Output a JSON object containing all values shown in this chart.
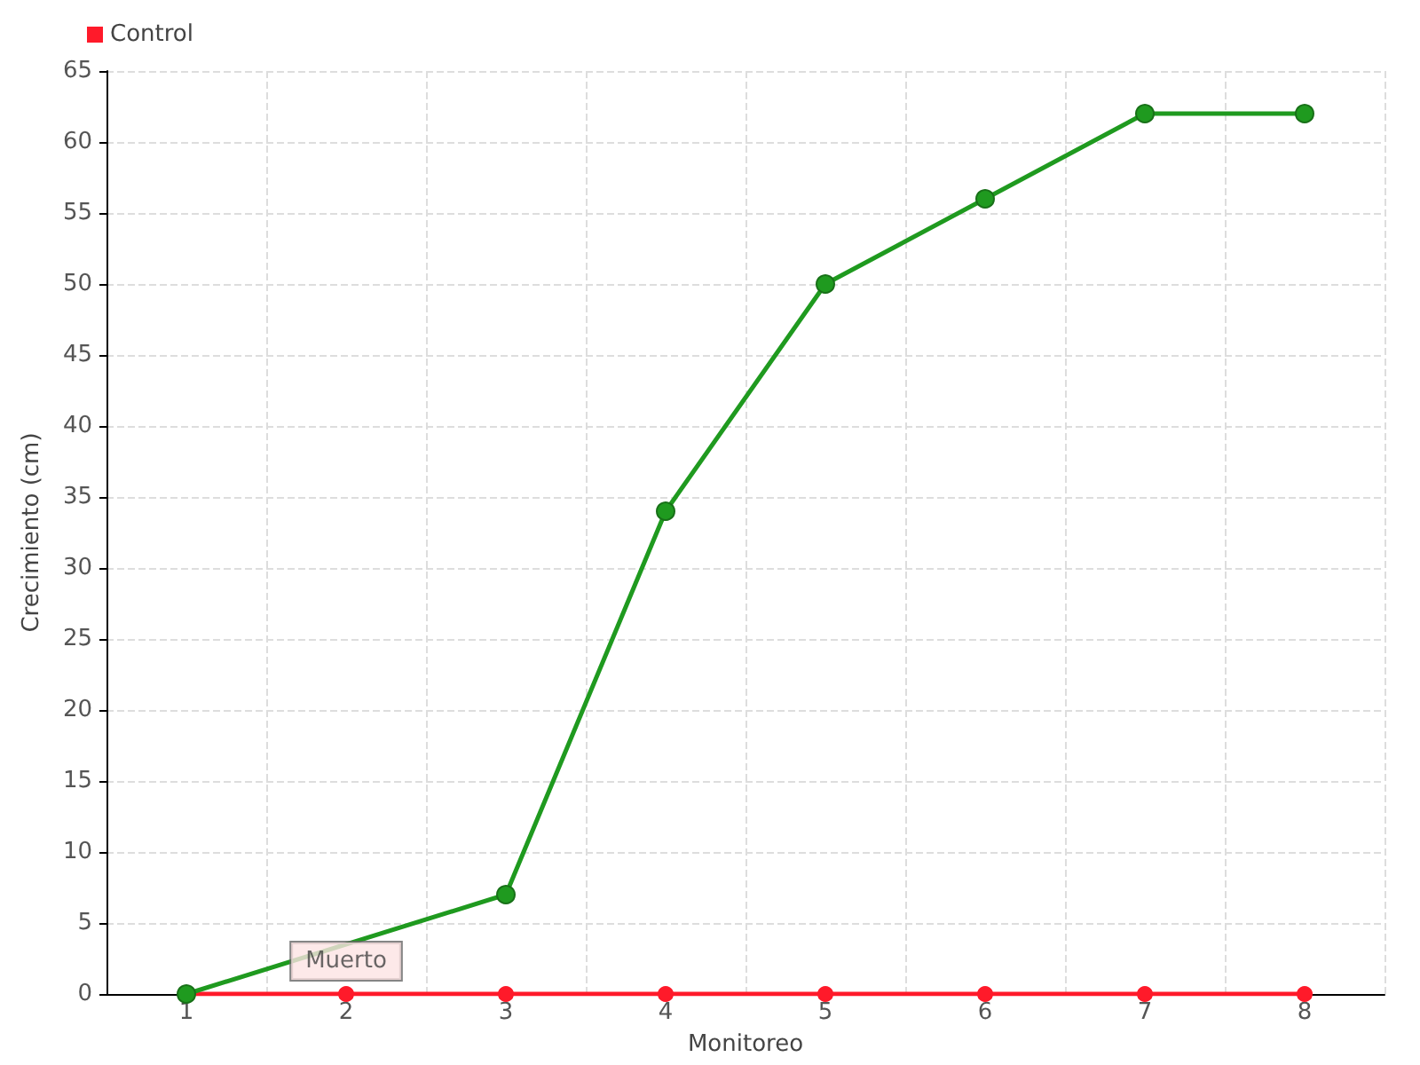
{
  "chart_data": {
    "type": "line",
    "xlabel": "Monitoreo",
    "ylabel": "Crecimiento (cm)",
    "categories": [
      "1",
      "2",
      "3",
      "4",
      "5",
      "6",
      "7",
      "8"
    ],
    "series": [
      {
        "color": "#1f9a1f",
        "values": [
          0,
          null,
          7,
          34,
          50,
          56,
          62,
          62
        ]
      },
      {
        "name": "Control",
        "color": "#ff1a2a",
        "values": [
          0,
          0,
          0,
          0,
          0,
          0,
          0,
          0
        ]
      }
    ],
    "ylim": [
      0,
      65
    ],
    "yticks": [
      0,
      5,
      10,
      15,
      20,
      25,
      30,
      35,
      40,
      45,
      50,
      55,
      60,
      65
    ],
    "grid": true,
    "legend": "top left",
    "marker": "circle",
    "line_style": "solid",
    "annotations": [
      {
        "text": "Muerto",
        "x": "2",
        "y": 0
      }
    ]
  }
}
